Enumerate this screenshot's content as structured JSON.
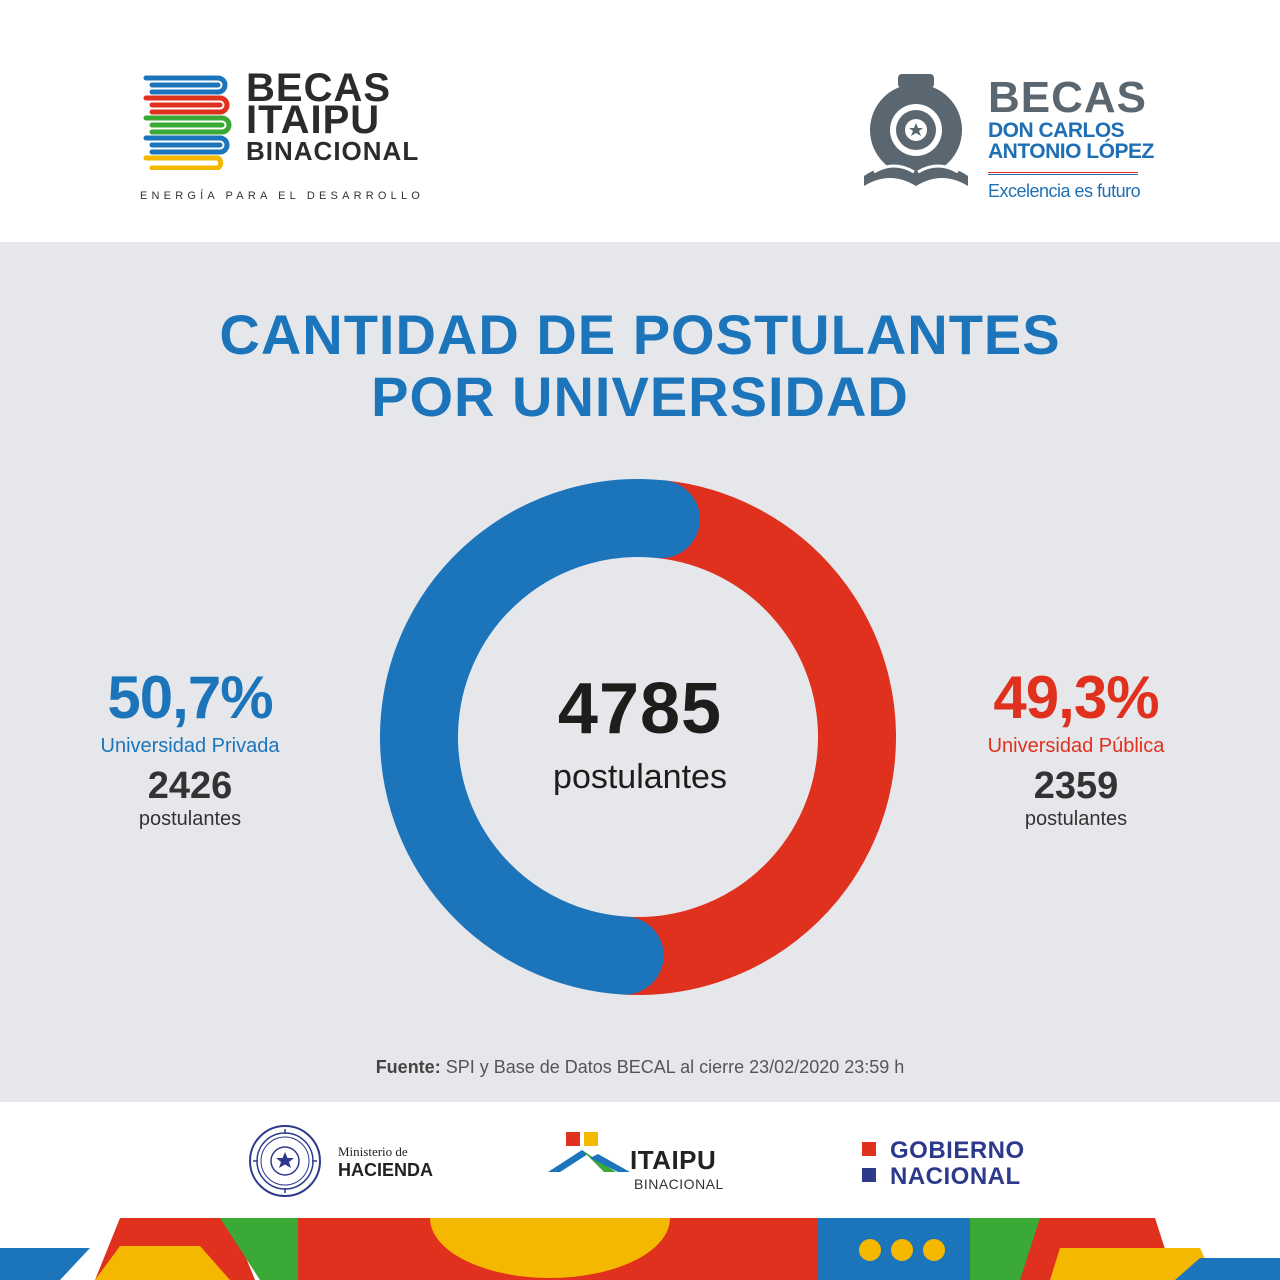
{
  "header": {
    "becas_itaipu": {
      "line1": "BECAS",
      "line2": "ITAIPU",
      "line3": "BINACIONAL",
      "tagline": "ENERGÍA PARA EL DESARROLLO"
    },
    "becas_dcal": {
      "line1": "BECAS",
      "line2": "DON CARLOS",
      "line3": "ANTONIO LÓPEZ",
      "tagline": "Excelencia es futuro"
    }
  },
  "title": {
    "line1": "CANTIDAD DE POSTULANTES",
    "line2": "POR UNIVERSIDAD"
  },
  "chart_data": {
    "type": "pie",
    "style": "donut",
    "total": 4785,
    "total_label": "postulantes",
    "series": [
      {
        "name": "Universidad Privada",
        "value": 2426,
        "percent_label": "50,7%",
        "unit": "postulantes",
        "color": "#1c74bb"
      },
      {
        "name": "Universidad Pública",
        "value": 2359,
        "percent_label": "49,3%",
        "unit": "postulantes",
        "color": "#e0301e"
      }
    ]
  },
  "source": {
    "label": "Fuente:",
    "text": " SPI y Base de Datos BECAL al cierre 23/02/2020 23:59 h"
  },
  "footer": {
    "hacienda": {
      "line1": "Ministerio de",
      "line2": "HACIENDA"
    },
    "itaipu": {
      "name": "ITAIPU",
      "sub": "BINACIONAL"
    },
    "gobierno": {
      "line1": "GOBIERNO",
      "line2": "NACIONAL"
    }
  },
  "colors": {
    "blue": "#1c74bb",
    "red": "#e0301e",
    "background": "#e6e7eb",
    "navy": "#2d3a8c"
  }
}
